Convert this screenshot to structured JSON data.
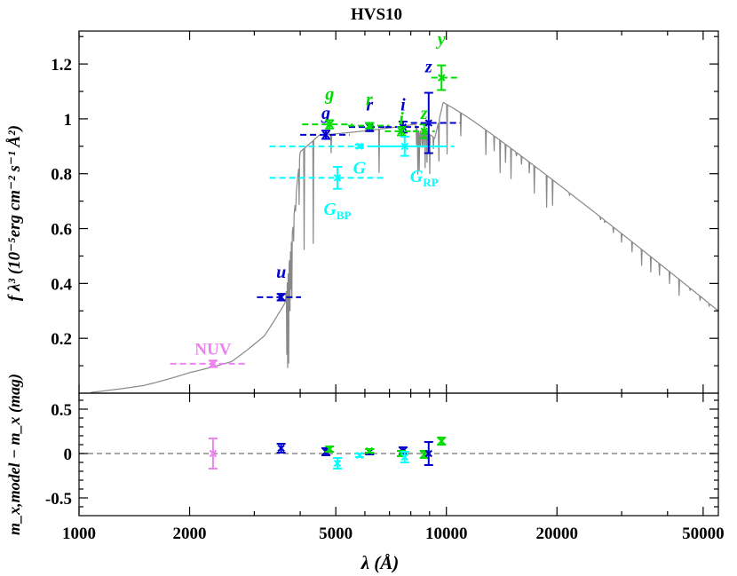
{
  "chart_data": {
    "type": "scatter",
    "title": "HVS10",
    "xlabel": "λ (Å)",
    "ylabel_top": "f λ³ (10⁻⁵erg cm⁻² s⁻¹ Å²)",
    "ylabel_bottom": "m_x,model − m_x (mag)",
    "xscale": "log",
    "xlim": [
      1000,
      55000
    ],
    "ylim_top": [
      0.0,
      1.32
    ],
    "ylim_bottom": [
      -0.7,
      0.68
    ],
    "x_ticks": [
      "1000",
      "2000",
      "5000",
      "10000",
      "20000",
      "50000"
    ],
    "y_ticks_top": [
      "0.2",
      "0.4",
      "0.6",
      "0.8",
      "1",
      "1.2"
    ],
    "y_ticks_bottom": [
      "-0.5",
      "0",
      "0.5"
    ],
    "grid": false,
    "colors": {
      "model": "#888888",
      "galex": "#ee82ee",
      "sdss": "#0000cd",
      "panstarrs": "#00dd00",
      "gaia": "#00ffff",
      "zero_line": "#888888"
    },
    "photometry": [
      {
        "label": "NUV",
        "subscript": "",
        "family": "galex",
        "x": 2316,
        "xlo": 1770,
        "xhi": 2830,
        "y": 0.107,
        "yerr": 0.012,
        "residual": 0.0,
        "res_err": 0.17,
        "label_x": 2316,
        "label_y": 0.14
      },
      {
        "label": "u",
        "subscript": "",
        "family": "sdss",
        "x": 3550,
        "xlo": 3050,
        "xhi": 4020,
        "y": 0.35,
        "yerr": 0.012,
        "residual": 0.06,
        "res_err": 0.05,
        "label_x": 3550,
        "label_y": 0.42
      },
      {
        "label": "g",
        "subscript": "",
        "family": "sdss",
        "x": 4700,
        "xlo": 4000,
        "xhi": 5450,
        "y": 0.942,
        "yerr": 0.015,
        "residual": 0.02,
        "res_err": 0.04,
        "label_x": 4700,
        "label_y": 1.0
      },
      {
        "label": "g",
        "subscript": "",
        "family": "panstarrs",
        "x": 4810,
        "xlo": 4050,
        "xhi": 5550,
        "y": 0.98,
        "yerr": 0.015,
        "residual": 0.05,
        "res_err": 0.03,
        "label_x": 4810,
        "label_y": 1.07
      },
      {
        "label": "G",
        "subscript": "BP",
        "family": "gaia",
        "x": 5050,
        "xlo": 3300,
        "xhi": 6800,
        "y": 0.785,
        "yerr": 0.04,
        "residual": -0.11,
        "res_err": 0.06,
        "label_x": 5050,
        "label_y": 0.65
      },
      {
        "label": "G",
        "subscript": "",
        "family": "gaia",
        "x": 5800,
        "xlo": 3300,
        "xhi": 9900,
        "y": 0.9,
        "yerr": 0.006,
        "residual": -0.02,
        "res_err": 0.02,
        "label_x": 5800,
        "label_y": 0.8
      },
      {
        "label": "r",
        "subscript": "",
        "family": "sdss",
        "x": 6180,
        "xlo": 5430,
        "xhi": 6930,
        "y": 0.97,
        "yerr": 0.015,
        "residual": 0.02,
        "res_err": 0.03,
        "label_x": 6180,
        "label_y": 1.03
      },
      {
        "label": "r",
        "subscript": "",
        "family": "panstarrs",
        "x": 6170,
        "xlo": 5400,
        "xhi": 7000,
        "y": 0.975,
        "yerr": 0.01,
        "residual": 0.03,
        "res_err": 0.02,
        "label_x": 6170,
        "label_y": 1.05
      },
      {
        "label": "i",
        "subscript": "",
        "family": "sdss",
        "x": 7620,
        "xlo": 6820,
        "xhi": 8420,
        "y": 0.97,
        "yerr": 0.02,
        "residual": 0.03,
        "res_err": 0.04,
        "label_x": 7620,
        "label_y": 1.03
      },
      {
        "label": "i",
        "subscript": "",
        "family": "panstarrs",
        "x": 7540,
        "xlo": 6800,
        "xhi": 8300,
        "y": 0.955,
        "yerr": 0.015,
        "residual": 0.0,
        "res_err": 0.03,
        "label_x": 7540,
        "label_y": 0.98
      },
      {
        "label": "G",
        "subscript": "RP",
        "family": "gaia",
        "x": 7700,
        "xlo": 6300,
        "xhi": 10500,
        "y": 0.9,
        "yerr": 0.035,
        "residual": -0.04,
        "res_err": 0.06,
        "label_x": 8700,
        "label_y": 0.77
      },
      {
        "label": "z",
        "subscript": "",
        "family": "panstarrs",
        "x": 8700,
        "xlo": 8100,
        "xhi": 9300,
        "y": 0.955,
        "yerr": 0.025,
        "residual": -0.01,
        "res_err": 0.04,
        "label_x": 8700,
        "label_y": 1.0
      },
      {
        "label": "z",
        "subscript": "",
        "family": "sdss",
        "x": 8950,
        "xlo": 8000,
        "xhi": 10900,
        "y": 0.985,
        "yerr": 0.11,
        "residual": 0.0,
        "res_err": 0.13,
        "label_x": 8950,
        "label_y": 1.17
      },
      {
        "label": "y",
        "subscript": "",
        "family": "panstarrs",
        "x": 9700,
        "xlo": 9100,
        "xhi": 10700,
        "y": 1.15,
        "yerr": 0.045,
        "residual": 0.14,
        "res_err": 0.04,
        "label_x": 9700,
        "label_y": 1.27
      }
    ]
  }
}
